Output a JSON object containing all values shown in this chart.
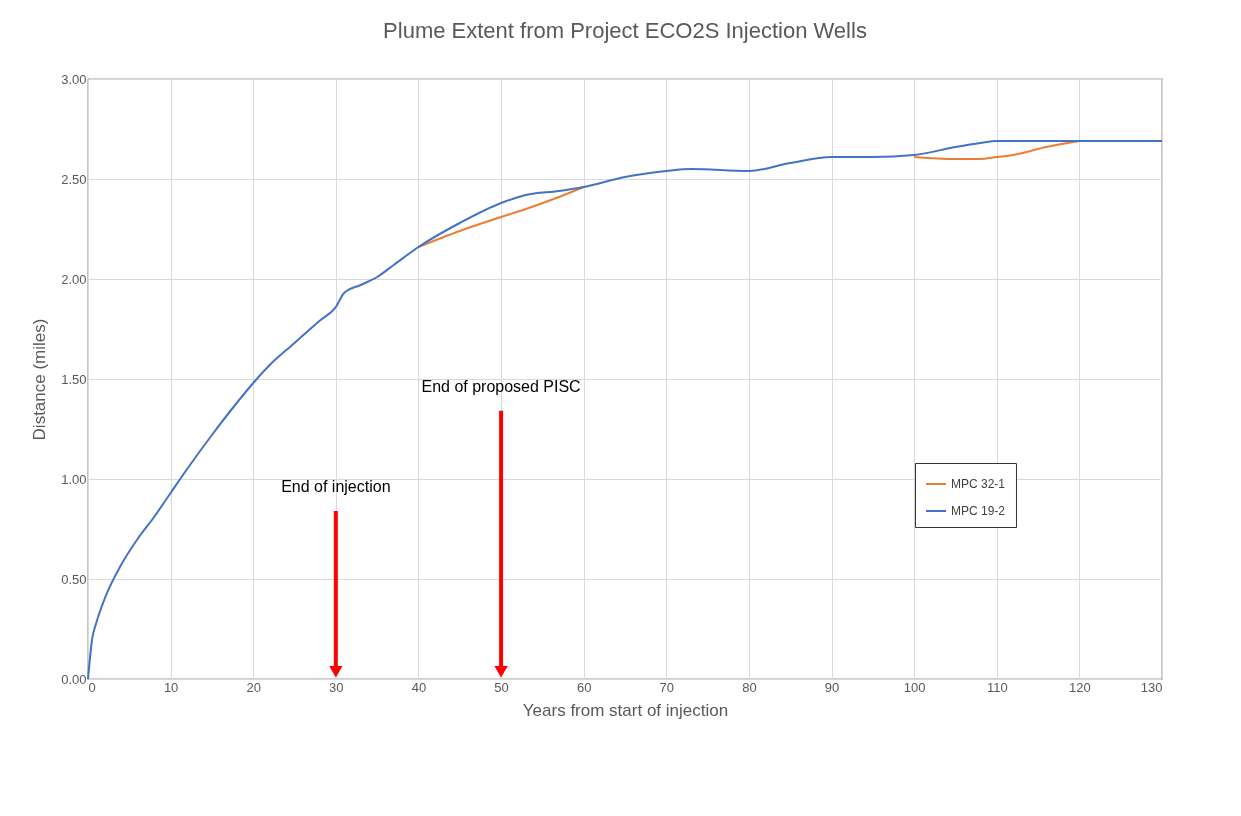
{
  "chart_data": {
    "type": "line",
    "title": "Plume Extent from Project ECO2S Injection Wells",
    "xlabel": "Years from start of injection",
    "ylabel": "Distance (miles)",
    "xlim": [
      0,
      130
    ],
    "xticks": [
      0,
      10,
      20,
      30,
      40,
      50,
      60,
      70,
      80,
      90,
      100,
      110,
      120,
      130
    ],
    "ylim": [
      0,
      3
    ],
    "yticks": [
      {
        "value": 0,
        "label": "0.00"
      },
      {
        "value": 0.5,
        "label": "0.50"
      },
      {
        "value": 1,
        "label": "1.00"
      },
      {
        "value": 1.5,
        "label": "1.50"
      },
      {
        "value": 2,
        "label": "2.00"
      },
      {
        "value": 2.5,
        "label": "2.50"
      },
      {
        "value": 3,
        "label": "3.00"
      }
    ],
    "x": [
      0,
      0.5,
      1,
      2,
      4,
      6,
      8,
      10,
      12,
      15,
      18,
      20,
      22,
      25,
      28,
      30,
      31,
      33,
      35,
      37,
      40,
      45,
      50,
      53,
      57,
      60,
      65,
      70,
      73,
      80,
      85,
      90,
      95,
      100,
      105,
      108,
      110,
      112,
      116,
      120,
      125,
      130
    ],
    "series": [
      {
        "name": "MPC 32-1",
        "color": "#ed7d31",
        "values": [
          null,
          null,
          null,
          null,
          null,
          null,
          null,
          null,
          null,
          null,
          null,
          null,
          null,
          null,
          null,
          null,
          null,
          null,
          null,
          null,
          2.16,
          2.24,
          2.31,
          2.35,
          2.41,
          2.46,
          null,
          null,
          null,
          null,
          null,
          null,
          null,
          2.61,
          2.6,
          2.6,
          2.61,
          2.62,
          2.66,
          2.69,
          null,
          null
        ]
      },
      {
        "name": "MPC 19-2",
        "color": "#4472c4",
        "values": [
          0,
          0.2,
          0.28,
          0.4,
          0.57,
          0.7,
          0.81,
          0.93,
          1.05,
          1.22,
          1.38,
          1.48,
          1.57,
          1.68,
          1.79,
          1.86,
          1.93,
          1.97,
          2.01,
          2.07,
          2.16,
          2.28,
          2.38,
          2.42,
          2.44,
          2.46,
          2.51,
          2.54,
          2.55,
          2.54,
          2.58,
          2.61,
          2.61,
          2.62,
          2.66,
          2.68,
          2.69,
          2.69,
          2.69,
          2.69,
          2.69,
          2.69
        ]
      }
    ],
    "ref_lines": [
      {
        "axis": "x",
        "value": 30,
        "label": "End of injection",
        "color": "#ff0000"
      },
      {
        "axis": "x",
        "value": 50,
        "label": "End of proposed PISC",
        "color": "#ff0000"
      }
    ],
    "grid": true,
    "legend": "right",
    "line_style": "solid",
    "marker": "none"
  }
}
